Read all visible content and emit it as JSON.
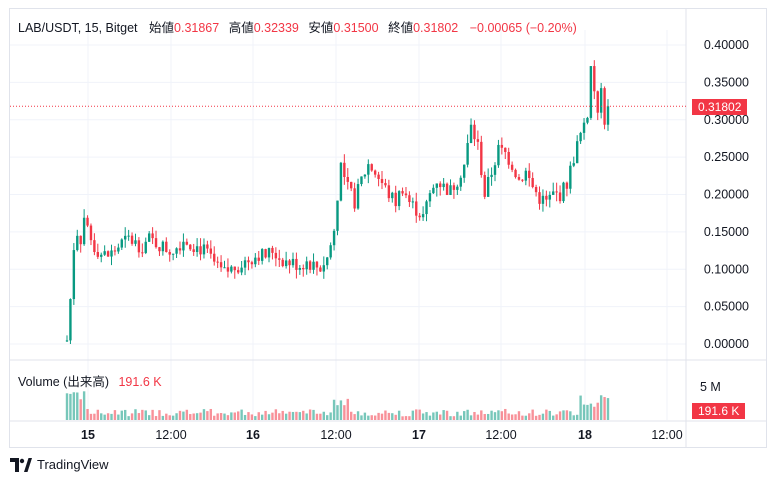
{
  "header": {
    "symbol": "LAB/USDT, 15, Bitget",
    "open_label": "始値",
    "open_value": "0.31867",
    "high_label": "高値",
    "high_value": "0.32339",
    "low_label": "安値",
    "low_value": "0.31500",
    "close_label": "終値",
    "close_value": "0.31802",
    "change": "−0.00065 (−0.20%)"
  },
  "volume_legend": {
    "label": "Volume (出来高)",
    "value": "191.6 K"
  },
  "price_tag": "0.31802",
  "volume_tag": "191.6 K",
  "brand": "TradingView",
  "colors": {
    "up": "#089981",
    "down": "#f23645",
    "grid": "#f0f3fa",
    "axis_text": "#131722"
  },
  "chart_data": {
    "type": "candlestick",
    "title": "LAB/USDT, 15, Bitget",
    "interval": "15",
    "y_ticks": [
      "0.40000",
      "0.35000",
      "0.30000",
      "0.25000",
      "0.20000",
      "0.15000",
      "0.10000",
      "0.05000",
      "0.00000"
    ],
    "ylim": [
      0,
      0.4
    ],
    "x_ticks": [
      "15",
      "12:00",
      "16",
      "12:00",
      "17",
      "12:00",
      "18",
      "12:00"
    ],
    "last_price": 0.31802,
    "volume_axis_ticks": [
      "5 M"
    ],
    "volume_last": "191.6 K",
    "price_path": [
      [
        0,
        0.005
      ],
      [
        1,
        0.06
      ],
      [
        2,
        0.13
      ],
      [
        3,
        0.15
      ],
      [
        4,
        0.14
      ],
      [
        5,
        0.17
      ],
      [
        6,
        0.155
      ],
      [
        7,
        0.14
      ],
      [
        8,
        0.13
      ],
      [
        9,
        0.125
      ],
      [
        10,
        0.12
      ],
      [
        12,
        0.118
      ],
      [
        14,
        0.125
      ],
      [
        16,
        0.135
      ],
      [
        18,
        0.14
      ],
      [
        20,
        0.135
      ],
      [
        22,
        0.13
      ],
      [
        24,
        0.14
      ],
      [
        26,
        0.135
      ],
      [
        28,
        0.13
      ],
      [
        30,
        0.125
      ],
      [
        32,
        0.13
      ],
      [
        34,
        0.14
      ],
      [
        36,
        0.135
      ],
      [
        38,
        0.13
      ],
      [
        40,
        0.125
      ],
      [
        42,
        0.115
      ],
      [
        44,
        0.1
      ],
      [
        46,
        0.095
      ],
      [
        48,
        0.1
      ],
      [
        50,
        0.105
      ],
      [
        52,
        0.11
      ],
      [
        54,
        0.115
      ],
      [
        56,
        0.12
      ],
      [
        58,
        0.118
      ],
      [
        60,
        0.125
      ],
      [
        62,
        0.115
      ],
      [
        64,
        0.11
      ],
      [
        66,
        0.108
      ],
      [
        68,
        0.105
      ],
      [
        70,
        0.11
      ],
      [
        72,
        0.105
      ],
      [
        74,
        0.102
      ],
      [
        76,
        0.115
      ],
      [
        78,
        0.15
      ],
      [
        79,
        0.2
      ],
      [
        80,
        0.24
      ],
      [
        81,
        0.22
      ],
      [
        82,
        0.21
      ],
      [
        84,
        0.19
      ],
      [
        86,
        0.22
      ],
      [
        88,
        0.24
      ],
      [
        90,
        0.23
      ],
      [
        92,
        0.215
      ],
      [
        94,
        0.2
      ],
      [
        96,
        0.19
      ],
      [
        98,
        0.21
      ],
      [
        100,
        0.19
      ],
      [
        102,
        0.18
      ],
      [
        104,
        0.17
      ],
      [
        106,
        0.2
      ],
      [
        108,
        0.22
      ],
      [
        110,
        0.21
      ],
      [
        112,
        0.205
      ],
      [
        114,
        0.22
      ],
      [
        116,
        0.24
      ],
      [
        118,
        0.29
      ],
      [
        120,
        0.265
      ],
      [
        122,
        0.2
      ],
      [
        124,
        0.23
      ],
      [
        126,
        0.26
      ],
      [
        128,
        0.255
      ],
      [
        130,
        0.24
      ],
      [
        132,
        0.22
      ],
      [
        134,
        0.23
      ],
      [
        136,
        0.21
      ],
      [
        138,
        0.195
      ],
      [
        140,
        0.19
      ],
      [
        142,
        0.2
      ],
      [
        144,
        0.2
      ],
      [
        146,
        0.215
      ],
      [
        148,
        0.25
      ],
      [
        150,
        0.28
      ],
      [
        152,
        0.31
      ],
      [
        153,
        0.37
      ],
      [
        154,
        0.34
      ],
      [
        155,
        0.3
      ],
      [
        156,
        0.35
      ],
      [
        157,
        0.3
      ],
      [
        158,
        0.32
      ]
    ]
  }
}
